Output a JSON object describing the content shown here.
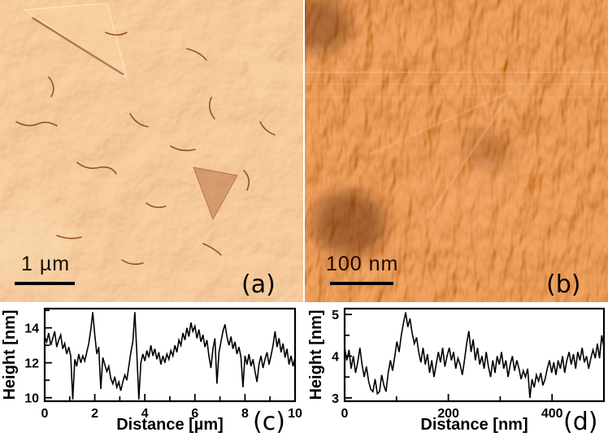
{
  "panels": {
    "a": {
      "label": "(a)",
      "scalebar": "1 µm"
    },
    "b": {
      "label": "(b)",
      "scalebar": "100 nm"
    }
  },
  "colors": {
    "afm_a_base": "#e59352",
    "afm_a_highlight": "#f8cf96",
    "afm_a_crack": "#6e1c04",
    "afm_b_base": "#c84e16",
    "afm_b_shadow": "#8c2808",
    "afm_b_highlight": "#f09a5c",
    "trace": "#000000",
    "background": "#ffffff"
  },
  "chart_data": [
    {
      "id": "c",
      "type": "line",
      "panel_label": "(c)",
      "xlabel": "Distance [µm]",
      "ylabel": "Height [nm]",
      "xlim": [
        0,
        10
      ],
      "ylim": [
        9.8,
        15.1
      ],
      "xticks": [
        0,
        2,
        4,
        6,
        8,
        10
      ],
      "xminorticks": [
        1,
        3,
        5,
        7,
        9
      ],
      "yticks": [
        10,
        12,
        14
      ],
      "yminorticks": [
        11,
        13,
        15
      ],
      "grid": false,
      "legend": false,
      "line_color": "#000000",
      "values": [
        13.5,
        13.2,
        13.7,
        13.0,
        13.4,
        13.8,
        12.9,
        13.3,
        13.6,
        12.8,
        13.1,
        12.5,
        12.9,
        12.4,
        9.9,
        12.2,
        11.8,
        12.5,
        12.0,
        12.4,
        12.1,
        12.6,
        13.1,
        13.9,
        14.9,
        13.6,
        12.5,
        12.9,
        10.5,
        12.3,
        11.9,
        11.5,
        11.8,
        11.1,
        10.8,
        11.2,
        10.6,
        10.9,
        10.4,
        10.9,
        11.3,
        11.0,
        11.8,
        12.6,
        13.2,
        14.9,
        12.6,
        9.9,
        12.0,
        12.5,
        12.1,
        12.7,
        12.3,
        13.0,
        12.4,
        12.8,
        12.2,
        12.6,
        11.9,
        12.4,
        12.0,
        12.5,
        12.2,
        12.7,
        12.4,
        13.0,
        12.6,
        13.3,
        13.0,
        13.7,
        13.3,
        14.0,
        13.5,
        14.3,
        13.8,
        14.1,
        13.4,
        13.9,
        13.2,
        13.6,
        12.9,
        13.3,
        12.4,
        11.7,
        12.8,
        13.4,
        10.8,
        12.6,
        13.2,
        13.8,
        14.2,
        13.5,
        13.0,
        13.5,
        12.8,
        13.2,
        12.5,
        12.9,
        12.3,
        10.6,
        12.4,
        11.9,
        12.5,
        11.8,
        12.2,
        11.5,
        10.9,
        11.9,
        12.4,
        11.7,
        12.2,
        12.6,
        11.9,
        12.4,
        13.0,
        13.8,
        12.9,
        13.4,
        12.6,
        13.1,
        12.3,
        12.8,
        11.9,
        12.4,
        11.8,
        12.3
      ]
    },
    {
      "id": "d",
      "type": "line",
      "panel_label": "(d)",
      "xlabel": "Distance [nm]",
      "ylabel": "Height [nm]",
      "xlim": [
        0,
        500
      ],
      "ylim": [
        2.92,
        5.14
      ],
      "xticks": [
        0,
        200,
        400
      ],
      "xminorticks": [
        100,
        300,
        500
      ],
      "yticks": [
        3,
        4,
        5
      ],
      "yminorticks": [
        3.5,
        4.5
      ],
      "grid": false,
      "legend": false,
      "line_color": "#000000",
      "values": [
        4.2,
        3.9,
        4.15,
        3.7,
        4.0,
        3.6,
        3.85,
        4.2,
        3.8,
        3.5,
        3.75,
        3.4,
        3.2,
        3.15,
        3.45,
        3.1,
        3.15,
        3.55,
        3.3,
        3.15,
        3.6,
        3.9,
        3.65,
        4.0,
        4.35,
        4.1,
        4.5,
        4.8,
        5.05,
        4.7,
        4.9,
        4.55,
        4.3,
        4.45,
        4.1,
        3.85,
        4.2,
        3.8,
        4.05,
        3.6,
        3.9,
        3.5,
        3.8,
        4.1,
        3.85,
        4.2,
        3.75,
        4.0,
        4.2,
        3.9,
        4.1,
        3.7,
        3.95,
        3.8,
        3.55,
        3.9,
        4.3,
        4.6,
        4.1,
        4.4,
        3.9,
        4.2,
        3.8,
        4.0,
        3.7,
        4.1,
        3.75,
        3.5,
        3.9,
        3.6,
        4.0,
        3.8,
        4.1,
        3.7,
        3.9,
        3.5,
        3.8,
        4.0,
        3.65,
        3.9,
        3.7,
        3.45,
        3.65,
        3.5,
        3.7,
        3.0,
        3.45,
        3.25,
        3.55,
        3.4,
        3.6,
        3.3,
        3.45,
        3.7,
        3.9,
        3.6,
        3.85,
        3.55,
        3.9,
        3.7,
        4.0,
        3.6,
        3.9,
        4.1,
        3.8,
        4.05,
        3.7,
        4.1,
        3.9,
        4.2,
        3.85,
        4.0,
        3.7,
        3.95,
        4.15,
        3.95,
        4.3,
        3.95,
        4.5,
        4.2
      ]
    }
  ]
}
